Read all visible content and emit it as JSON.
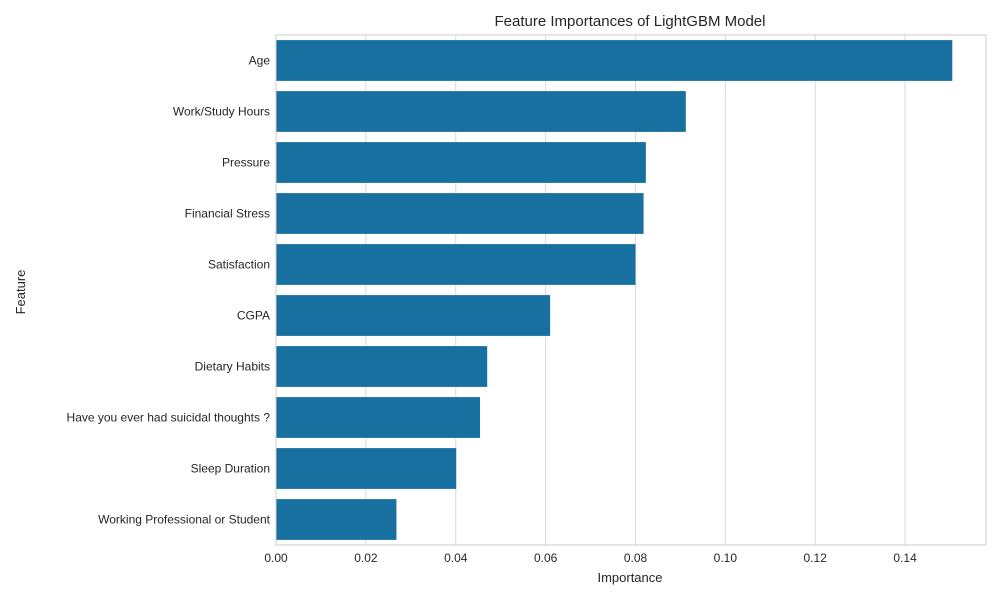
{
  "chart_data": {
    "type": "bar",
    "orientation": "horizontal",
    "title": "Feature Importances of LightGBM Model",
    "xlabel": "Importance",
    "ylabel": "Feature",
    "categories": [
      "Age",
      "Work/Study Hours",
      "Pressure",
      "Financial Stress",
      "Satisfaction",
      "CGPA",
      "Dietary Habits",
      "Have you ever had suicidal thoughts ?",
      "Sleep Duration",
      "Working Professional or Student"
    ],
    "values": [
      0.1505,
      0.0912,
      0.0823,
      0.0818,
      0.08,
      0.061,
      0.047,
      0.0454,
      0.0401,
      0.0268
    ],
    "xlim": [
      0,
      0.158
    ],
    "xticks": [
      0.0,
      0.02,
      0.04,
      0.06,
      0.08,
      0.1,
      0.12,
      0.14
    ],
    "xtick_labels": [
      "0.00",
      "0.02",
      "0.04",
      "0.06",
      "0.08",
      "0.10",
      "0.12",
      "0.14"
    ],
    "grid": "vertical",
    "bar_color": "#1870a0",
    "grid_color": "#d9d9d9",
    "axis_color": "#cccccc"
  }
}
